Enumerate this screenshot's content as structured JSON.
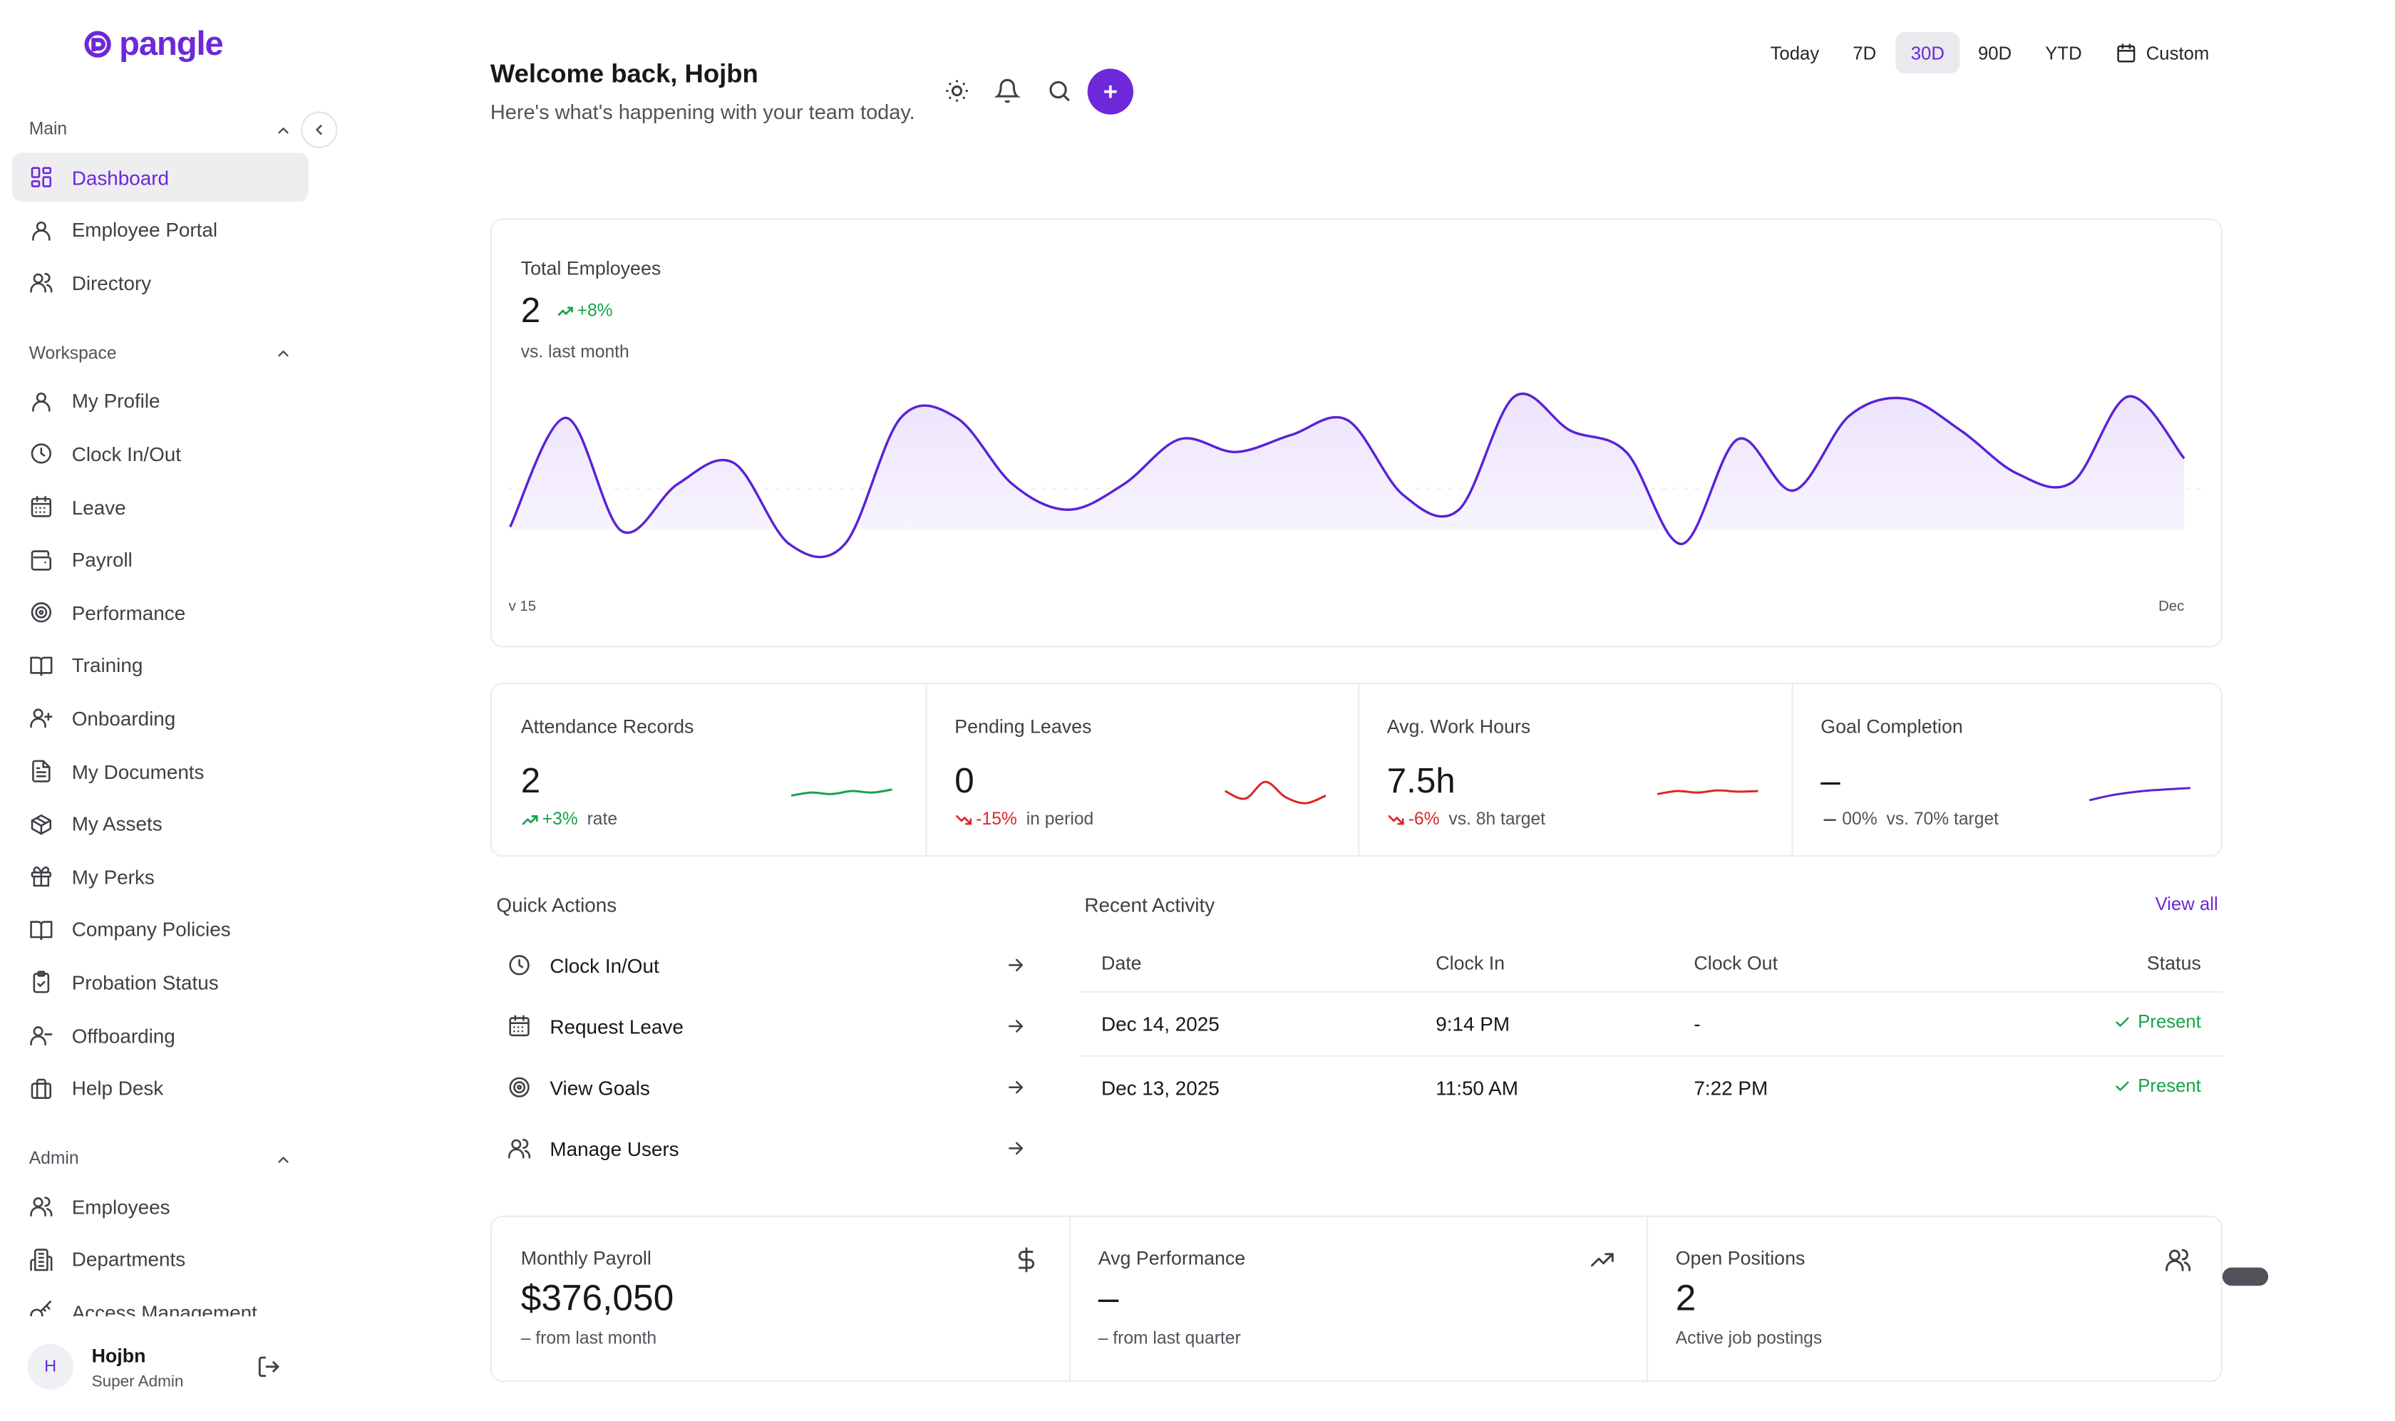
{
  "brand": {
    "name": "pangle",
    "color": "#6d28d9"
  },
  "sidebar": {
    "sections": [
      {
        "title": "Main",
        "items": [
          {
            "label": "Dashboard",
            "icon": "grid-icon",
            "active": true
          },
          {
            "label": "Employee Portal",
            "icon": "user-icon"
          },
          {
            "label": "Directory",
            "icon": "users-icon"
          }
        ]
      },
      {
        "title": "Workspace",
        "items": [
          {
            "label": "My Profile",
            "icon": "user-icon"
          },
          {
            "label": "Clock In/Out",
            "icon": "clock-icon"
          },
          {
            "label": "Leave",
            "icon": "calendar-icon"
          },
          {
            "label": "Payroll",
            "icon": "wallet-icon"
          },
          {
            "label": "Performance",
            "icon": "target-icon"
          },
          {
            "label": "Training",
            "icon": "book-icon"
          },
          {
            "label": "Onboarding",
            "icon": "user-plus-icon"
          },
          {
            "label": "My Documents",
            "icon": "file-icon"
          },
          {
            "label": "My Assets",
            "icon": "package-icon"
          },
          {
            "label": "My Perks",
            "icon": "gift-icon"
          },
          {
            "label": "Company Policies",
            "icon": "book-open-icon"
          },
          {
            "label": "Probation Status",
            "icon": "clipboard-check-icon"
          },
          {
            "label": "Offboarding",
            "icon": "user-minus-icon"
          },
          {
            "label": "Help Desk",
            "icon": "briefcase-icon"
          }
        ]
      },
      {
        "title": "Admin",
        "items": [
          {
            "label": "Employees",
            "icon": "users-icon"
          },
          {
            "label": "Departments",
            "icon": "building-icon"
          },
          {
            "label": "Access Management",
            "icon": "key-icon"
          }
        ]
      }
    ],
    "user": {
      "initial": "H",
      "name": "Hojbn",
      "role": "Super Admin"
    }
  },
  "header": {
    "title": "Welcome back, Hojbn",
    "subtitle": "Here's what's happening with your team today.",
    "ranges": [
      "Today",
      "7D",
      "30D",
      "90D",
      "YTD",
      "Custom"
    ],
    "active_range": "30D"
  },
  "total_employees": {
    "label": "Total Employees",
    "value": "2",
    "trend": "+8%",
    "sub": "vs. last month",
    "x_start_label": "v 15",
    "x_end_label": "Dec"
  },
  "chart_data": {
    "type": "area",
    "title": "",
    "x_tick_labels": [
      "v 15",
      "Dec"
    ],
    "ylim": [
      0,
      1
    ],
    "values": [
      0.35,
      0.86,
      0.33,
      0.55,
      0.65,
      0.27,
      0.27,
      0.86,
      0.86,
      0.55,
      0.43,
      0.55,
      0.76,
      0.7,
      0.78,
      0.85,
      0.5,
      0.43,
      0.96,
      0.8,
      0.7,
      0.27,
      0.76,
      0.52,
      0.87,
      0.95,
      0.8,
      0.6,
      0.56,
      0.96,
      0.67
    ],
    "color": "#5b21d6"
  },
  "stats": [
    {
      "label": "Attendance Records",
      "value": "2",
      "trend": "+3%",
      "trend_dir": "up",
      "foot": "rate",
      "spark_color": "#16a34a",
      "spark": [
        0.45,
        0.55,
        0.5,
        0.6,
        0.55,
        0.65
      ]
    },
    {
      "label": "Pending Leaves",
      "value": "0",
      "trend": "-15%",
      "trend_dir": "down",
      "foot": "in period",
      "spark_color": "#dc2626",
      "spark": [
        0.6,
        0.35,
        0.9,
        0.4,
        0.2,
        0.45
      ]
    },
    {
      "label": "Avg. Work Hours",
      "value": "7.5h",
      "trend": "-6%",
      "trend_dir": "down",
      "foot": "vs. 8h target",
      "spark_color": "#dc2626",
      "spark": [
        0.5,
        0.6,
        0.55,
        0.62,
        0.58,
        0.6
      ]
    },
    {
      "label": "Goal Completion",
      "value": "–",
      "trend": "00%",
      "trend_dir": "flat",
      "foot": "vs. 70% target",
      "spark_color": "#5b21d6",
      "spark": [
        0.3,
        0.45,
        0.55,
        0.62,
        0.66,
        0.7
      ]
    }
  ],
  "quick_actions": {
    "title": "Quick Actions",
    "items": [
      {
        "label": "Clock In/Out",
        "icon": "clock-icon"
      },
      {
        "label": "Request Leave",
        "icon": "calendar-icon"
      },
      {
        "label": "View Goals",
        "icon": "target-icon"
      },
      {
        "label": "Manage Users",
        "icon": "users-icon"
      }
    ]
  },
  "recent_activity": {
    "title": "Recent Activity",
    "view_all": "View all",
    "columns": [
      "Date",
      "Clock In",
      "Clock Out",
      "Status"
    ],
    "rows": [
      {
        "date": "Dec 14, 2025",
        "clock_in": "9:14 PM",
        "clock_out": "-",
        "status": "Present"
      },
      {
        "date": "Dec 13, 2025",
        "clock_in": "11:50 AM",
        "clock_out": "7:22 PM",
        "status": "Present"
      }
    ]
  },
  "bottom": [
    {
      "label": "Monthly Payroll",
      "value": "$376,050",
      "sub": "– from last month",
      "icon": "dollar-icon"
    },
    {
      "label": "Avg Performance",
      "value": "–",
      "sub": "– from last quarter",
      "icon": "trending-up-icon"
    },
    {
      "label": "Open Positions",
      "value": "2",
      "sub": "Active job postings",
      "icon": "users-icon"
    }
  ]
}
